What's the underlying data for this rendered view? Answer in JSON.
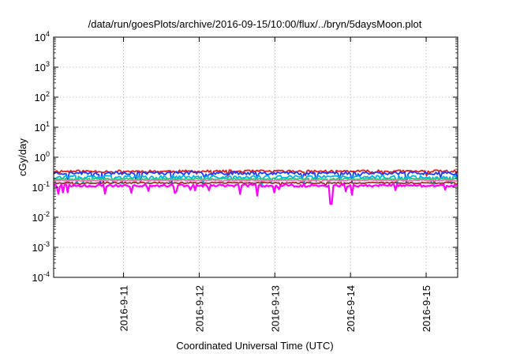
{
  "chart_data": {
    "type": "line",
    "title": "/data/run/goesPlots/archive/2016-09-15/10:00/flux/../bryn/5daysMoon.plot",
    "xlabel": "Coordinated Universal Time (UTC)",
    "ylabel": "cGy/day",
    "y_scale": "log",
    "ylim": [
      0.0001,
      10000
    ],
    "xlim": [
      "2016-09-10 01:50",
      "2016-09-15 10:00"
    ],
    "grid": true,
    "y_ticks": [
      {
        "base": "10",
        "exp": "-4",
        "value": 0.0001
      },
      {
        "base": "10",
        "exp": "-3",
        "value": 0.001
      },
      {
        "base": "10",
        "exp": "-2",
        "value": 0.01
      },
      {
        "base": "10",
        "exp": "-1",
        "value": 0.1
      },
      {
        "base": "10",
        "exp": "0",
        "value": 1
      },
      {
        "base": "10",
        "exp": "1",
        "value": 10
      },
      {
        "base": "10",
        "exp": "2",
        "value": 100
      },
      {
        "base": "10",
        "exp": "3",
        "value": 1000
      },
      {
        "base": "10",
        "exp": "4",
        "value": 10000
      }
    ],
    "x_ticks": [
      {
        "label": "2016-9-11",
        "value": "2016-09-11 00:00"
      },
      {
        "label": "2016-9-12",
        "value": "2016-09-12 00:00"
      },
      {
        "label": "2016-9-13",
        "value": "2016-09-13 00:00"
      },
      {
        "label": "2016-9-14",
        "value": "2016-09-14 00:00"
      },
      {
        "label": "2016-9-15",
        "value": "2016-09-15 00:00"
      }
    ],
    "series": [
      {
        "color": "#e41a1c",
        "level": 0.34,
        "jitter": 0.1,
        "dip_depth": 0.3,
        "dip_rate": 0.03,
        "seed": 11
      },
      {
        "color": "#1a3cff",
        "level": 0.3,
        "jitter": 0.12,
        "dip_depth": 0.55,
        "dip_rate": 0.07,
        "seed": 23
      },
      {
        "color": "#00b4e6",
        "level": 0.22,
        "jitter": 0.12,
        "dip_depth": 0.5,
        "dip_rate": 0.08,
        "seed": 37
      },
      {
        "color": "#2ecc71",
        "level": 0.19,
        "jitter": 0.06,
        "dip_depth": 0.25,
        "dip_rate": 0.03,
        "seed": 41
      },
      {
        "color": "#ff69b4",
        "level": 0.17,
        "jitter": 0.05,
        "dip_depth": 0.2,
        "dip_rate": 0.02,
        "seed": 53
      },
      {
        "color": "#a52a2a",
        "level": 0.14,
        "jitter": 0.05,
        "dip_depth": 0.2,
        "dip_rate": 0.02,
        "seed": 67
      },
      {
        "color": "#ff00ff",
        "level": 0.115,
        "jitter": 0.1,
        "dip_depth": 0.55,
        "dip_rate": 0.09,
        "seed": 79,
        "deep_dip": {
          "at": "2016-09-13 17:50",
          "value": 0.028
        }
      }
    ]
  }
}
